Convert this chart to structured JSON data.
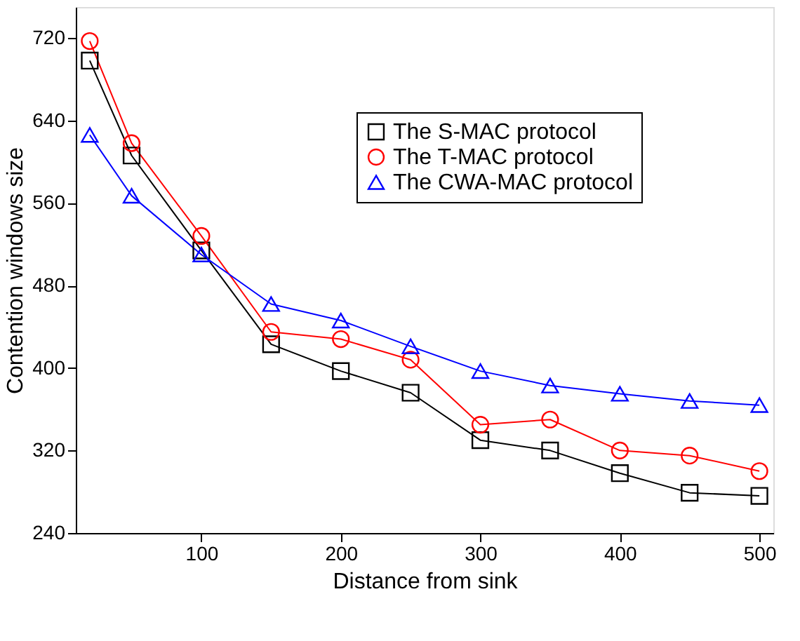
{
  "chart_data": {
    "type": "line",
    "xlabel": "Distance from sink",
    "ylabel": "Contention windows size",
    "x": [
      20,
      50,
      100,
      150,
      200,
      250,
      300,
      350,
      400,
      450,
      500
    ],
    "series": [
      {
        "name": "The S-MAC protocol",
        "color": "#000000",
        "marker": "square",
        "values": [
          698,
          606,
          514,
          423,
          397,
          376,
          330,
          320,
          298,
          279,
          276
        ]
      },
      {
        "name": "The T-MAC protocol",
        "color": "#ff0000",
        "marker": "circle",
        "values": [
          717,
          618,
          528,
          435,
          428,
          408,
          345,
          350,
          320,
          315,
          300
        ]
      },
      {
        "name": "The CWA-MAC protocol",
        "color": "#0000ff",
        "marker": "triangle",
        "values": [
          626,
          567,
          510,
          462,
          446,
          421,
          397,
          383,
          375,
          368,
          364
        ]
      }
    ],
    "xlim": [
      10,
      510
    ],
    "xticks": [
      100,
      200,
      300,
      400,
      500
    ],
    "ylim": [
      240,
      750
    ],
    "yticks": [
      240,
      320,
      400,
      480,
      560,
      640,
      720
    ],
    "grid": false,
    "legend": "top right",
    "line_style": "solid"
  }
}
